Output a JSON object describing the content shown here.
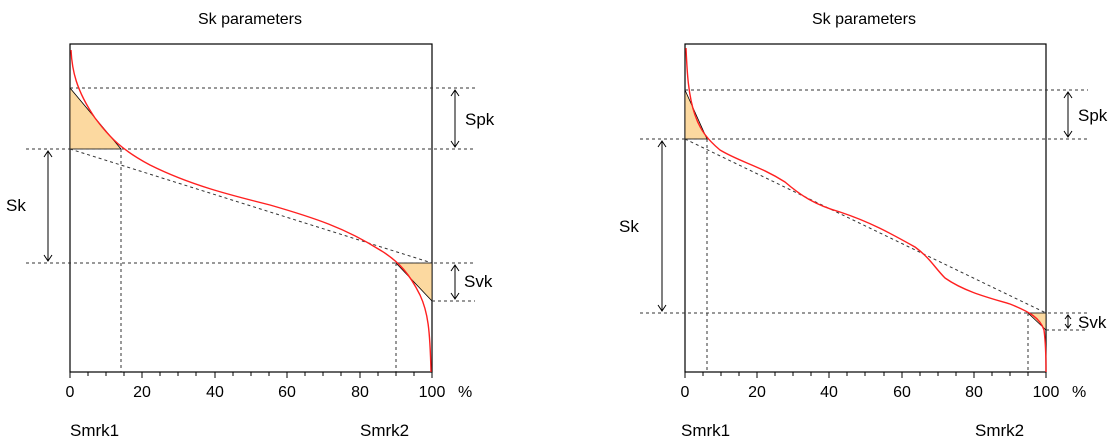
{
  "panels": [
    {
      "title": "Sk parameters",
      "labels": {
        "sk": "Sk",
        "spk": "Spk",
        "svk": "Svk",
        "smrk1": "Smrk1",
        "smrk2": "Smrk2",
        "unit": "%"
      },
      "x_ticks": [
        "0",
        "20",
        "40",
        "60",
        "80",
        "100"
      ],
      "mr1_percent": 14,
      "mr2_percent": 90
    },
    {
      "title": "Sk parameters",
      "labels": {
        "sk": "Sk",
        "spk": "Spk",
        "svk": "Svk",
        "smrk1": "Smrk1",
        "smrk2": "Smrk2",
        "unit": "%"
      },
      "x_ticks": [
        "0",
        "20",
        "40",
        "60",
        "80",
        "100"
      ],
      "mr1_percent": 6,
      "mr2_percent": 95
    }
  ],
  "colors": {
    "curve": "#ff2020",
    "fill": "#fcd9a0",
    "axis": "#000000",
    "guide": "#333333"
  }
}
